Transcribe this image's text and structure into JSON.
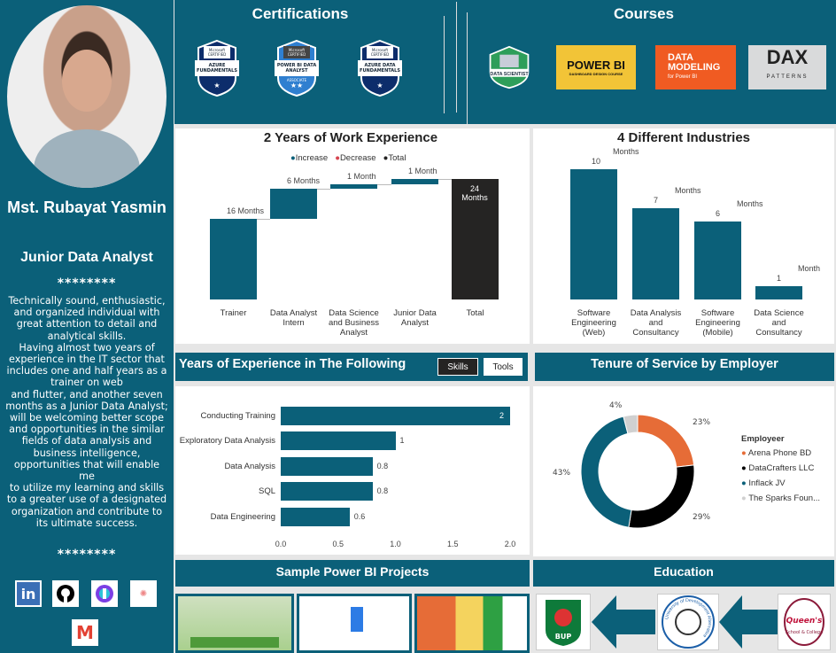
{
  "profile": {
    "name": "Mst. Rubayat Yasmin",
    "role": "Junior Data Analyst",
    "separator": "********",
    "bio": "Technically sound, enthusiastic, and organized individual with great attention to detail and analytical skills.\nHaving almost two years of experience in the IT sector that includes one and half years as a trainer on web\nand flutter, and another seven months as a Junior Data Analyst; will be welcoming better scope and opportunities in the similar fields of data analysis and business intelligence, opportunities that will enable me\nto utilize my learning and skills to a greater use of a designated organization and contribute to its ultimate success.",
    "social": [
      {
        "icon": "linkedin-icon",
        "label": "in"
      },
      {
        "icon": "github-icon"
      },
      {
        "icon": "upwork-icon"
      },
      {
        "icon": "link-icon"
      },
      {
        "icon": "gmail-icon",
        "label": "M"
      }
    ]
  },
  "certifications": {
    "title": "Certifications",
    "badges": [
      {
        "top": "Microsoft CERTIFIED",
        "name": "AZURE FUNDAMENTALS",
        "stars": "★"
      },
      {
        "top": "Microsoft CERTIFIED",
        "name": "POWER BI DATA ANALYST",
        "level": "ASSOCIATE",
        "stars": "★★"
      },
      {
        "top": "Microsoft CERTIFIED",
        "name": "AZURE DATA FUNDAMENTALS",
        "stars": "★"
      }
    ]
  },
  "courses": {
    "title": "Courses",
    "items": [
      {
        "label": "DATA SCIENTIST"
      },
      {
        "label": "POWER BI",
        "sub": "DASHBOARD DESIGN COURSE"
      },
      {
        "label": "DATA MODELING",
        "sub": "for Power BI"
      },
      {
        "label": "DAX",
        "sub": "PATTERNS"
      }
    ]
  },
  "colors": {
    "teal": "#0b6079",
    "total": "#252423",
    "decrease": "#d64550",
    "orange": "#e66c37",
    "black": "#000000",
    "grey": "#d0d0d0"
  },
  "chart_data": [
    {
      "type": "bar",
      "subtype": "waterfall",
      "title": "2 Years of Work Experience",
      "legend": [
        "Increase",
        "Decrease",
        "Total"
      ],
      "legend_placement": "top",
      "categories": [
        "Trainer",
        "Data Analyst Intern",
        "Data Science and Business Analyst",
        "Junior Data Analyst",
        "Total"
      ],
      "values": [
        16,
        6,
        1,
        1,
        24
      ],
      "labels": [
        "16  Months",
        "6  Months",
        "1  Month",
        "1  Month",
        "24 Months"
      ],
      "grid": false
    },
    {
      "type": "bar",
      "title": "4 Different Industries",
      "categories": [
        "Software Engineering (Web)",
        "Data Analysis and Consultancy",
        "Software Engineering (Mobile)",
        "Data Science and Consultancy"
      ],
      "values": [
        10,
        7,
        6,
        1
      ],
      "units": [
        "Months",
        "Months",
        "Months",
        "Month"
      ],
      "grid": false
    },
    {
      "type": "bar",
      "orientation": "horizontal",
      "title": "Years of Experience in The Following",
      "categories": [
        "Conducting Training",
        "Exploratory Data Analysis",
        "Data Analysis",
        "SQL",
        "Data Engineering"
      ],
      "values": [
        2,
        1,
        0.8,
        0.8,
        0.6
      ],
      "xlim": [
        0,
        2.0
      ],
      "xticks": [
        "0.0",
        "0.5",
        "1.0",
        "1.5",
        "2.0"
      ],
      "grid": false
    },
    {
      "type": "pie",
      "subtype": "donut",
      "title": "Tenure of Service by Employer",
      "legend_title": "Employeer",
      "legend_placement": "right",
      "categories": [
        "Arena Phone BD",
        "DataCrafters LLC",
        "Inflack JV",
        "The Sparks Foun..."
      ],
      "values": [
        23,
        29,
        43,
        4
      ],
      "labels": [
        "23%",
        "29%",
        "43%",
        "4%"
      ]
    }
  ],
  "toggle": {
    "skills": "Skills",
    "tools": "Tools"
  },
  "projects": {
    "title": "Sample Power BI Projects"
  },
  "education": {
    "title": "Education",
    "items": [
      {
        "label": "BUP"
      },
      {
        "label": "University of Development Alternative"
      },
      {
        "label": "Queen's School & College"
      }
    ]
  }
}
